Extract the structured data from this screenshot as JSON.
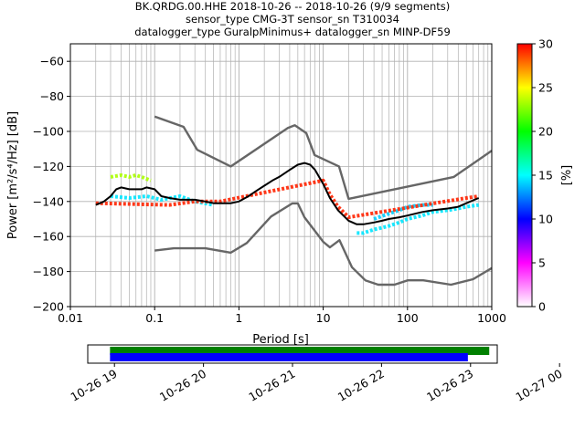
{
  "chart_data": [
    {
      "type": "heatmap",
      "title": [
        "BK.QRDG.00.HHE   2018-10-26 -- 2018-10-26  (9/9 segments)",
        "sensor_type CMG-3T sensor_sn T310034",
        "datalogger_type GuralpMinimus+ datalogger_sn MINP-DF59"
      ],
      "xlabel": "Period [s]",
      "ylabel": "Power [m²/s⁴/Hz] [dB]",
      "xscale": "log",
      "xlim": [
        0.01,
        1000
      ],
      "ylim": [
        -200,
        -50
      ],
      "x_ticks": [
        0.01,
        0.1,
        1,
        10,
        100,
        1000
      ],
      "x_tick_labels": [
        "0.01",
        "0.1",
        "1",
        "10",
        "100",
        "1000"
      ],
      "y_ticks": [
        -200,
        -180,
        -160,
        -140,
        -120,
        -100,
        -80,
        -60
      ],
      "y_tick_labels": [
        "−200",
        "−180",
        "−160",
        "−140",
        "−120",
        "−100",
        "−80",
        "−60"
      ],
      "grid": true,
      "colorbar": {
        "label": "[%]",
        "range": [
          0,
          30
        ],
        "ticks": [
          0,
          5,
          10,
          15,
          20,
          25,
          30
        ],
        "tick_labels": [
          "0",
          "5",
          "10",
          "15",
          "20",
          "25",
          "30"
        ],
        "colors": [
          "#ffffff",
          "#ff00ff",
          "#0000ff",
          "#00ffff",
          "#00ff00",
          "#ffff00",
          "#ff0000"
        ]
      },
      "series": [
        {
          "role": "mean",
          "color": "#000000",
          "x": [
            0.02,
            0.025,
            0.03,
            0.035,
            0.04,
            0.05,
            0.06,
            0.07,
            0.08,
            0.1,
            0.12,
            0.15,
            0.2,
            0.25,
            0.3,
            0.4,
            0.5,
            0.6,
            0.8,
            1,
            1.3,
            1.6,
            2,
            2.5,
            3,
            4,
            5,
            6,
            7,
            8,
            10,
            12,
            15,
            20,
            25,
            30,
            40,
            50,
            60,
            80,
            100,
            150,
            200,
            300,
            400,
            500,
            700
          ],
          "y": [
            -142,
            -140,
            -137,
            -133,
            -132,
            -133,
            -133,
            -133,
            -132,
            -133,
            -137,
            -138,
            -139,
            -139,
            -139,
            -140,
            -141,
            -141,
            -141,
            -140,
            -137,
            -134,
            -131,
            -128,
            -126,
            -122,
            -119,
            -118,
            -119,
            -122,
            -130,
            -138,
            -145,
            -151,
            -153,
            -153,
            -152,
            -151,
            -150,
            -149,
            -148,
            -146,
            -145,
            -144,
            -143,
            -141,
            -138
          ]
        },
        {
          "role": "noise-model-high",
          "color": "#666666",
          "x": [
            0.1,
            0.22,
            0.32,
            0.8,
            3.8,
            4.6,
            6.3,
            7.9,
            15.4,
            20,
            354.8,
            1000
          ],
          "y": [
            -91.5,
            -97.4,
            -110.5,
            -120,
            -98,
            -96.5,
            -101,
            -113.5,
            -120,
            -138.5,
            -126,
            -111
          ]
        },
        {
          "role": "noise-model-low",
          "color": "#666666",
          "x": [
            0.1,
            0.17,
            0.4,
            0.8,
            1.24,
            2.4,
            4.3,
            5,
            6,
            10,
            12,
            15.6,
            21.9,
            31.6,
            45,
            70,
            101,
            154,
            328,
            600,
            1000
          ],
          "y": [
            -168,
            -166.7,
            -166.7,
            -169.2,
            -163.7,
            -148.6,
            -141.1,
            -141.1,
            -149,
            -163,
            -166.2,
            -162.1,
            -177.5,
            -185,
            -187.5,
            -187.5,
            -185,
            -185,
            -187.5,
            -184.4,
            -178
          ]
        }
      ],
      "density_bands": [
        {
          "color": "#aaff00",
          "x": [
            0.03,
            0.04,
            0.05,
            0.06,
            0.07,
            0.09
          ],
          "y": [
            -126,
            -125,
            -126,
            -125,
            -126,
            -128
          ]
        },
        {
          "color": "#00e5ff",
          "x": [
            0.03,
            0.05,
            0.08,
            0.12,
            0.2,
            0.3,
            0.5
          ],
          "y": [
            -137,
            -138,
            -137,
            -139,
            -137,
            -140,
            -142
          ]
        },
        {
          "color": "#00e5ff",
          "x": [
            25,
            30,
            40,
            50,
            60,
            80,
            100,
            150,
            200,
            300,
            400,
            500,
            700
          ],
          "y": [
            -158,
            -158,
            -156,
            -155,
            -154,
            -152,
            -150,
            -148,
            -146,
            -145,
            -144,
            -143,
            -142
          ]
        },
        {
          "color": "#00ccff",
          "x": [
            40,
            60,
            80,
            100,
            150,
            200
          ],
          "y": [
            -150,
            -147,
            -145,
            -143,
            -142,
            -142
          ]
        },
        {
          "color": "#ff2200",
          "x": [
            0.02,
            0.15,
            0.3,
            0.6,
            10,
            12,
            15,
            20,
            500,
            700
          ],
          "y": [
            -141,
            -142,
            -140,
            -140,
            -128,
            -136,
            -143,
            -149,
            -138,
            -137
          ]
        }
      ]
    },
    {
      "type": "timeline",
      "x_tick_labels": [
        "10-26 19",
        "10-26 20",
        "10-26 21",
        "10-26 22",
        "10-26 23",
        "10-27 00"
      ],
      "range_hours": [
        18.7,
        23.3
      ],
      "tick_hours": [
        19,
        20,
        21,
        22,
        23,
        24
      ],
      "bars": [
        {
          "color": "#008000",
          "start_hours": 18.95,
          "end_hours": 23.21
        },
        {
          "color": "#0000ff",
          "start_hours": 18.95,
          "end_hours": 22.97
        }
      ]
    }
  ]
}
